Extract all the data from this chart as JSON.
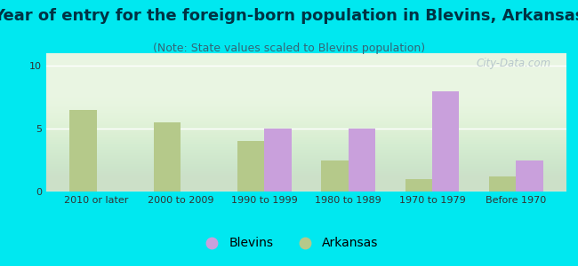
{
  "title": "Year of entry for the foreign-born population in Blevins, Arkansas",
  "subtitle": "(Note: State values scaled to Blevins population)",
  "categories": [
    "2010 or later",
    "2000 to 2009",
    "1990 to 1999",
    "1980 to 1989",
    "1970 to 1979",
    "Before 1970"
  ],
  "blevins_values": [
    0,
    0,
    5,
    5,
    8,
    2.5
  ],
  "arkansas_values": [
    6.5,
    5.5,
    4,
    2.5,
    1,
    1.2
  ],
  "blevins_color": "#c9a0dc",
  "arkansas_color": "#b5c98a",
  "background_color": "#00e8f0",
  "ylim": [
    0,
    11
  ],
  "yticks": [
    0,
    5,
    10
  ],
  "bar_width": 0.32,
  "title_fontsize": 13,
  "subtitle_fontsize": 9,
  "tick_fontsize": 8,
  "legend_fontsize": 10,
  "watermark_text": "City-Data.com",
  "watermark_color": "#b0c0c8"
}
